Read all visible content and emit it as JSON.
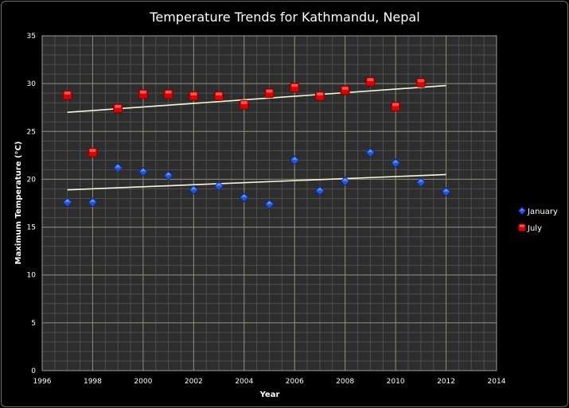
{
  "chart_data": {
    "type": "scatter",
    "title": "Temperature Trends for Kathmandu, Nepal",
    "xlabel": "Year",
    "ylabel": "Maximum Temperature  (°C)",
    "xlim": [
      1996,
      2014
    ],
    "ylim": [
      0,
      35
    ],
    "xticks": [
      1996,
      1998,
      2000,
      2002,
      2004,
      2006,
      2008,
      2010,
      2012,
      2014
    ],
    "yticks": [
      0,
      5,
      10,
      15,
      20,
      25,
      30,
      35
    ],
    "grid": true,
    "legend_position": "right",
    "series": [
      {
        "name": "January",
        "color": "#1f57e6",
        "marker": "diamond",
        "x": [
          1997,
          1998,
          1999,
          2000,
          2001,
          2002,
          2003,
          2004,
          2005,
          2006,
          2007,
          2008,
          2009,
          2010,
          2011,
          2012
        ],
        "y": [
          17.6,
          17.6,
          21.2,
          20.8,
          20.4,
          18.9,
          19.3,
          18.1,
          17.4,
          22.0,
          18.8,
          19.8,
          22.8,
          21.7,
          19.7,
          18.7
        ],
        "trendline": {
          "x": [
            1997,
            2012
          ],
          "y": [
            18.9,
            20.5
          ]
        }
      },
      {
        "name": "July",
        "color": "#e00000",
        "marker": "square",
        "x": [
          1997,
          1998,
          1999,
          2000,
          2001,
          2002,
          2003,
          2004,
          2005,
          2006,
          2007,
          2008,
          2009,
          2010,
          2011
        ],
        "y": [
          28.8,
          22.8,
          27.4,
          28.9,
          28.9,
          28.7,
          28.7,
          27.8,
          29.0,
          29.6,
          28.7,
          29.3,
          30.2,
          27.6,
          30.1
        ],
        "trendline": {
          "x": [
            1997,
            2012
          ],
          "y": [
            27.0,
            29.8
          ]
        }
      }
    ]
  }
}
